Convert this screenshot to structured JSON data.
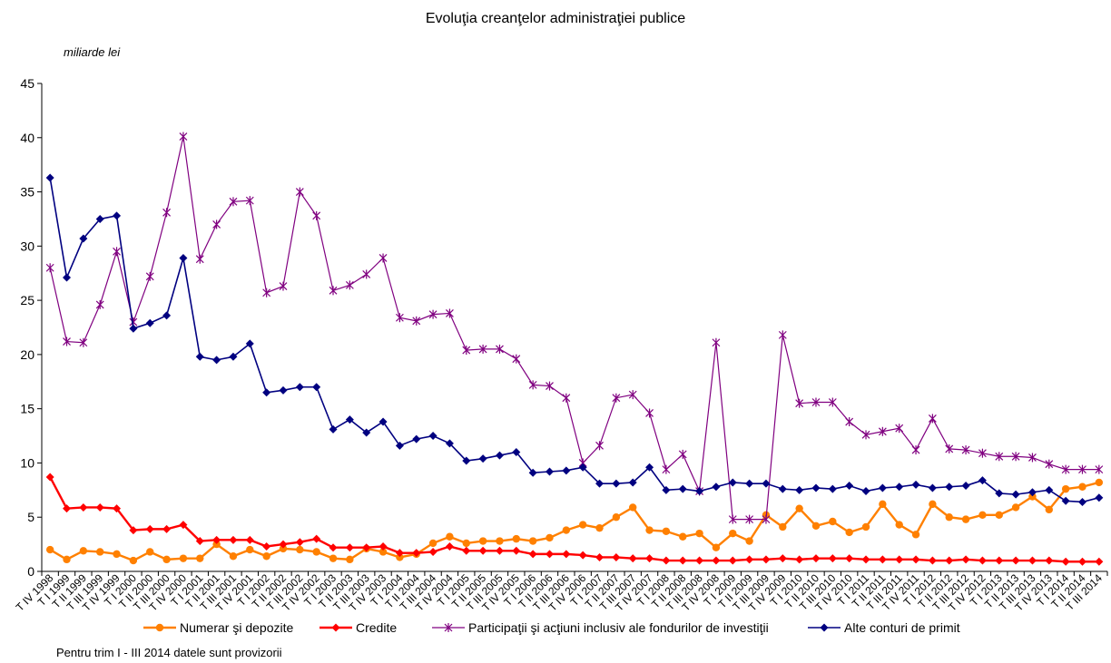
{
  "chart_data": {
    "type": "line",
    "title": "Evoluţia creanţelor administraţiei publice",
    "unit_label": "miliarde lei",
    "note": "Pentru trim I - III 2014 datele sunt provizorii",
    "ylim": [
      0,
      45
    ],
    "yticks": [
      0,
      5,
      10,
      15,
      20,
      25,
      30,
      35,
      40,
      45
    ],
    "grid": false,
    "legend_position": "bottom",
    "categories": [
      "T IV 1998",
      "T I 1999",
      "T II 1999",
      "T III 1999",
      "T IV 1999",
      "T I 2000",
      "T II 2000",
      "T III 2000",
      "T IV 2000",
      "T I 2001",
      "T II 2001",
      "T III 2001",
      "T IV 2001",
      "T I 2002",
      "T II 2002",
      "T III 2002",
      "T IV 2002",
      "T I 2003",
      "T II 2003",
      "T III 2003",
      "T IV 2003",
      "T I 2004",
      "T II 2004",
      "T III 2004",
      "T IV 2004",
      "T I 2005",
      "T II 2005",
      "T III 2005",
      "T IV 2005",
      "T I 2006",
      "T II 2006",
      "T III 2006",
      "T IV 2006",
      "T I 2007",
      "T II 2007",
      "T III 2007",
      "T IV 2007",
      "T I 2008",
      "T II 2008",
      "T III 2008",
      "T IV 2008",
      "T I 2009",
      "T II 2009",
      "T III 2009",
      "T IV 2009",
      "T I 2010",
      "T II 2010",
      "T III 2010",
      "T IV 2010",
      "T I 2011",
      "T II 2011",
      "T III 2011",
      "T IV 2011",
      "T I 2012",
      "T II 2012",
      "T III 2012",
      "T IV 2012",
      "T I 2013",
      "T II 2013",
      "T III 2013",
      "T IV 2013",
      "T I 2014",
      "T II 2014",
      "T III 2014"
    ],
    "xtick_labels": [
      "T IV 1998",
      "T I 1999",
      "T II 1999",
      "T III 1999",
      "T IV 1999",
      "T I 2000",
      "T II 2000",
      "T III 2000",
      "T IV 2000",
      "T I 2001",
      "T II 2001",
      "T III 2001",
      "T IV 2001",
      "T I 2002",
      "T II 2002",
      "T III 2002",
      "T IV 2002",
      "T I 2003",
      "T II 2003",
      "T III 2003",
      "T IV 2003",
      "T I 2004",
      "T II 2004",
      "T III 2004",
      "T IV 2004",
      "T I 2005",
      "T II 2005",
      "T III 2005",
      "T IV 2005",
      "T I 2006",
      "T II 2006",
      "T III 2006",
      "T IV 2006",
      "T I 2007",
      "T II 2007",
      "T III 2007",
      "T IV 2007",
      "T I 2008",
      "T II 2008",
      "T III 2008",
      "T IV 2008",
      "T I 2009",
      "T II 2009",
      "T III 2009",
      "T IV 2009",
      "T I 2010",
      "T II 2010",
      "T III 2010",
      "T IV 2010",
      "T I 2011",
      "T II 2011",
      "T III 2011",
      "T IV 2011",
      "T I 2012",
      "T II 2012",
      "T III 2012",
      "T IV 2012",
      "T I 2013",
      "T II 2013",
      "T III 2013",
      "T IV 2013",
      "T I 2014",
      "T II 2014",
      "T III 2014"
    ],
    "series": [
      {
        "name": "Numerar şi depozite",
        "color": "#ff8000",
        "marker": "circle",
        "values": [
          2.0,
          1.1,
          1.9,
          1.8,
          1.6,
          1.0,
          1.8,
          1.1,
          1.2,
          1.2,
          2.5,
          1.4,
          2.0,
          1.4,
          2.1,
          2.0,
          1.8,
          1.2,
          1.1,
          2.1,
          1.8,
          1.3,
          1.6,
          2.6,
          3.2,
          2.6,
          2.8,
          2.8,
          3.0,
          2.8,
          3.1,
          3.8,
          4.3,
          4.0,
          5.0,
          5.9,
          3.8,
          3.7,
          3.2,
          3.5,
          2.2,
          3.5,
          2.8,
          5.2,
          4.1,
          5.8,
          4.2,
          4.6,
          3.6,
          4.1,
          6.2,
          4.3,
          3.4,
          6.2,
          5.0,
          4.8,
          5.2,
          5.2,
          5.9,
          6.9,
          5.7,
          7.6,
          7.8,
          8.2
        ]
      },
      {
        "name": "Credite",
        "color": "#ff0000",
        "marker": "diamond",
        "values": [
          8.7,
          5.8,
          5.9,
          5.9,
          5.8,
          3.8,
          3.9,
          3.9,
          4.3,
          2.8,
          2.9,
          2.9,
          2.9,
          2.3,
          2.5,
          2.7,
          3.0,
          2.2,
          2.2,
          2.2,
          2.3,
          1.7,
          1.7,
          1.8,
          2.3,
          1.9,
          1.9,
          1.9,
          1.9,
          1.6,
          1.6,
          1.6,
          1.5,
          1.3,
          1.3,
          1.2,
          1.2,
          1.0,
          1.0,
          1.0,
          1.0,
          1.0,
          1.1,
          1.1,
          1.2,
          1.1,
          1.2,
          1.2,
          1.2,
          1.1,
          1.1,
          1.1,
          1.1,
          1.0,
          1.0,
          1.1,
          1.0,
          1.0,
          1.0,
          1.0,
          1.0,
          0.9,
          0.9,
          0.9
        ]
      },
      {
        "name": "Participaţii şi acţiuni inclusiv ale fondurilor de investiţii",
        "color": "#800080",
        "marker": "star",
        "values": [
          28.0,
          21.2,
          21.1,
          24.6,
          29.5,
          23.0,
          27.2,
          33.1,
          40.1,
          28.8,
          32.0,
          34.1,
          34.2,
          25.7,
          26.3,
          35.0,
          32.8,
          25.9,
          26.4,
          27.4,
          28.9,
          23.4,
          23.1,
          23.7,
          23.8,
          20.4,
          20.5,
          20.5,
          19.6,
          17.2,
          17.1,
          16.0,
          10.0,
          11.6,
          16.0,
          16.3,
          14.6,
          9.4,
          10.8,
          7.4,
          21.1,
          4.8,
          4.8,
          4.8,
          21.8,
          15.5,
          15.6,
          15.6,
          13.8,
          12.6,
          12.9,
          13.2,
          11.2,
          14.1,
          11.3,
          11.2,
          10.9,
          10.6,
          10.6,
          10.5,
          9.9,
          9.4,
          9.4,
          9.4
        ]
      },
      {
        "name": "Alte conturi de primit",
        "color": "#000080",
        "marker": "diamond",
        "values": [
          36.3,
          27.1,
          30.7,
          32.5,
          32.8,
          22.4,
          22.9,
          23.6,
          28.9,
          19.8,
          19.5,
          19.8,
          21.0,
          16.5,
          16.7,
          17.0,
          17.0,
          13.1,
          14.0,
          12.8,
          13.8,
          11.6,
          12.2,
          12.5,
          11.8,
          10.2,
          10.4,
          10.7,
          11.0,
          9.1,
          9.2,
          9.3,
          9.6,
          8.1,
          8.1,
          8.2,
          9.6,
          7.5,
          7.6,
          7.4,
          7.8,
          8.2,
          8.1,
          8.1,
          7.6,
          7.5,
          7.7,
          7.6,
          7.9,
          7.4,
          7.7,
          7.8,
          8.0,
          7.7,
          7.8,
          7.9,
          8.4,
          7.2,
          7.1,
          7.3,
          7.5,
          6.5,
          6.4,
          6.8
        ]
      }
    ]
  }
}
